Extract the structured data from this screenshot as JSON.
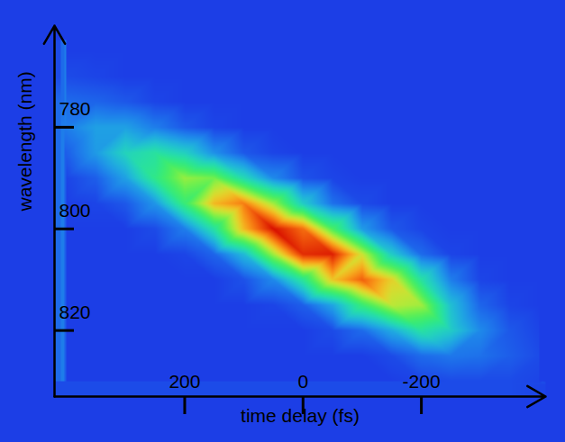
{
  "chart_data": {
    "type": "heatmap",
    "xlabel": "time delay (fs)",
    "ylabel": "wavelength (nm)",
    "x": [
      400,
      350,
      300,
      250,
      200,
      150,
      100,
      50,
      0,
      -50,
      -100,
      -150,
      -200,
      -250,
      -300,
      -350,
      -400
    ],
    "y": [
      765,
      770,
      775,
      780,
      785,
      790,
      795,
      800,
      805,
      810,
      815,
      820,
      825,
      830
    ],
    "values": [
      [
        0.08,
        0.08,
        0.08,
        0.08,
        0.08,
        0.08,
        0.08,
        0.08,
        0.08,
        0.08,
        0.08,
        0.08,
        0.08,
        0.08,
        0.08,
        0.08,
        0.08
      ],
      [
        0.1,
        0.09,
        0.08,
        0.08,
        0.08,
        0.08,
        0.08,
        0.08,
        0.08,
        0.08,
        0.08,
        0.08,
        0.08,
        0.08,
        0.08,
        0.08,
        0.08
      ],
      [
        0.15,
        0.14,
        0.12,
        0.09,
        0.08,
        0.08,
        0.08,
        0.08,
        0.08,
        0.08,
        0.08,
        0.08,
        0.08,
        0.08,
        0.08,
        0.08,
        0.08
      ],
      [
        0.18,
        0.24,
        0.24,
        0.18,
        0.12,
        0.09,
        0.08,
        0.08,
        0.08,
        0.08,
        0.08,
        0.08,
        0.08,
        0.08,
        0.08,
        0.08,
        0.08
      ],
      [
        0.13,
        0.23,
        0.35,
        0.4,
        0.34,
        0.21,
        0.12,
        0.09,
        0.08,
        0.08,
        0.08,
        0.08,
        0.08,
        0.08,
        0.08,
        0.08,
        0.08
      ],
      [
        0.09,
        0.13,
        0.24,
        0.44,
        0.6,
        0.56,
        0.37,
        0.2,
        0.11,
        0.09,
        0.08,
        0.08,
        0.08,
        0.08,
        0.08,
        0.08,
        0.08
      ],
      [
        0.08,
        0.09,
        0.12,
        0.22,
        0.47,
        0.74,
        0.82,
        0.61,
        0.33,
        0.16,
        0.1,
        0.08,
        0.08,
        0.08,
        0.08,
        0.08,
        0.08
      ],
      [
        0.08,
        0.08,
        0.08,
        0.1,
        0.18,
        0.4,
        0.74,
        0.97,
        0.84,
        0.51,
        0.23,
        0.12,
        0.09,
        0.08,
        0.08,
        0.08,
        0.08
      ],
      [
        0.08,
        0.08,
        0.08,
        0.08,
        0.09,
        0.14,
        0.29,
        0.61,
        0.93,
        0.95,
        0.66,
        0.33,
        0.15,
        0.09,
        0.08,
        0.08,
        0.08
      ],
      [
        0.08,
        0.08,
        0.08,
        0.08,
        0.08,
        0.08,
        0.11,
        0.2,
        0.42,
        0.72,
        0.86,
        0.7,
        0.4,
        0.18,
        0.09,
        0.08,
        0.08
      ],
      [
        0.08,
        0.08,
        0.08,
        0.08,
        0.08,
        0.08,
        0.08,
        0.09,
        0.13,
        0.25,
        0.47,
        0.64,
        0.61,
        0.3,
        0.14,
        0.09,
        0.08
      ],
      [
        0.08,
        0.08,
        0.08,
        0.08,
        0.08,
        0.08,
        0.08,
        0.08,
        0.08,
        0.1,
        0.15,
        0.26,
        0.4,
        0.33,
        0.2,
        0.12,
        0.09
      ],
      [
        0.08,
        0.08,
        0.08,
        0.08,
        0.08,
        0.08,
        0.08,
        0.08,
        0.08,
        0.08,
        0.08,
        0.1,
        0.15,
        0.17,
        0.16,
        0.13,
        0.1
      ],
      [
        0.08,
        0.08,
        0.08,
        0.08,
        0.08,
        0.08,
        0.08,
        0.08,
        0.08,
        0.08,
        0.08,
        0.08,
        0.09,
        0.1,
        0.1,
        0.1,
        0.09
      ]
    ],
    "xlim": [
      420,
      -410
    ],
    "ylim": [
      833,
      760
    ],
    "xticks": [
      200,
      0,
      -200
    ],
    "yticks": [
      780,
      800,
      820
    ]
  }
}
